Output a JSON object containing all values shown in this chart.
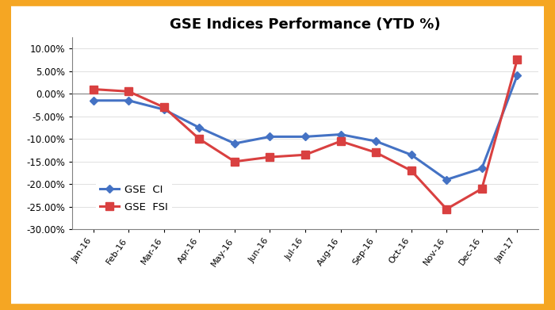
{
  "title": "GSE Indices Performance (YTD %)",
  "categories": [
    "Jan-16",
    "Feb-16",
    "Mar-16",
    "Apr-16",
    "May-16",
    "Jun-16",
    "Jul-16",
    "Aug-16",
    "Sep-16",
    "Oct-16",
    "Nov-16",
    "Dec-16",
    "Jan-17"
  ],
  "gse_ci": [
    -1.5,
    -1.5,
    -3.5,
    -7.5,
    -11.0,
    -9.5,
    -9.5,
    -9.0,
    -10.5,
    -13.5,
    -19.0,
    -16.5,
    4.0
  ],
  "gse_fsi": [
    1.0,
    0.5,
    -3.0,
    -10.0,
    -15.0,
    -14.0,
    -13.5,
    -10.5,
    -13.0,
    -17.0,
    -25.5,
    -21.0,
    7.5
  ],
  "ci_color": "#4472C4",
  "fsi_color": "#D94040",
  "ylim": [
    -30,
    12.5
  ],
  "yticks": [
    -30,
    -25,
    -20,
    -15,
    -10,
    -5,
    0,
    5,
    10
  ],
  "background_color": "#FFFFFF",
  "outer_color": "#F5A623",
  "legend_ci": "GSE  CI",
  "legend_fsi": "GSE  FSI"
}
